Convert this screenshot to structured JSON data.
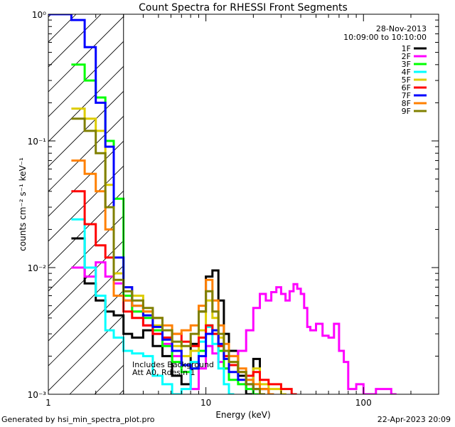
{
  "chart_data": {
    "type": "line",
    "title": "Count Spectra for RHESSI Front Segments",
    "xlabel": "Energy (keV)",
    "ylabel": "counts cm⁻² s⁻¹ keV⁻¹",
    "xscale": "log",
    "yscale": "log",
    "xlim": [
      1,
      300
    ],
    "ylim": [
      0.001,
      1
    ],
    "x_ticks": [
      1,
      10,
      100
    ],
    "x_tick_labels": [
      "1",
      "10",
      "100"
    ],
    "y_ticks": [
      0.001,
      0.01,
      0.1,
      1
    ],
    "y_tick_labels": [
      "10⁻³",
      "10⁻²",
      "10⁻¹",
      "10⁰"
    ],
    "date": "28-Nov-2013",
    "time_range": "10:09:00 to 10:10:00",
    "legend_position": "top-right",
    "excluded_region": [
      1,
      3
    ],
    "annotations": [
      "Includes Background",
      "Att A0, Rdesin 1"
    ],
    "series": [
      {
        "name": "1F",
        "color": "#000000",
        "points": [
          [
            1.4,
            0.017
          ],
          [
            1.7,
            0.0075
          ],
          [
            2.0,
            0.0055
          ],
          [
            2.3,
            0.0045
          ],
          [
            2.6,
            0.0042
          ],
          [
            3.0,
            0.003
          ],
          [
            3.4,
            0.0028
          ],
          [
            4.0,
            0.0032
          ],
          [
            4.6,
            0.0024
          ],
          [
            5.3,
            0.002
          ],
          [
            6.1,
            0.0014
          ],
          [
            7.0,
            0.0012
          ],
          [
            8.0,
            0.0025
          ],
          [
            9.0,
            0.0045
          ],
          [
            10.0,
            0.0085
          ],
          [
            11.0,
            0.0095
          ],
          [
            12.0,
            0.0055
          ],
          [
            13.0,
            0.003
          ],
          [
            14.0,
            0.0022
          ],
          [
            16.0,
            0.0014
          ],
          [
            18.0,
            0.001
          ],
          [
            20.0,
            0.0019
          ],
          [
            22.0,
            0.0011
          ],
          [
            25.0,
            0.001
          ]
        ]
      },
      {
        "name": "2F",
        "color": "#ff00ff",
        "points": [
          [
            1.4,
            0.01
          ],
          [
            1.7,
            0.0085
          ],
          [
            2.0,
            0.011
          ],
          [
            2.3,
            0.0085
          ],
          [
            2.6,
            0.0075
          ],
          [
            3.0,
            0.0055
          ],
          [
            3.4,
            0.0045
          ],
          [
            4.0,
            0.0035
          ],
          [
            4.6,
            0.003
          ],
          [
            5.3,
            0.0025
          ],
          [
            6.1,
            0.002
          ],
          [
            7.0,
            0.0017
          ],
          [
            8.0,
            0.0011
          ],
          [
            9.0,
            0.0016
          ],
          [
            10.0,
            0.0024
          ],
          [
            11.0,
            0.0021
          ],
          [
            12.0,
            0.0018
          ],
          [
            13.0,
            0.0016
          ],
          [
            14.0,
            0.002
          ],
          [
            16.0,
            0.0022
          ],
          [
            18.0,
            0.0032
          ],
          [
            20.0,
            0.0048
          ],
          [
            22.0,
            0.0062
          ],
          [
            24.0,
            0.0055
          ],
          [
            26.0,
            0.0064
          ],
          [
            28.0,
            0.007
          ],
          [
            30.0,
            0.0062
          ],
          [
            32.0,
            0.0055
          ],
          [
            34.0,
            0.0065
          ],
          [
            36.0,
            0.0074
          ],
          [
            38.0,
            0.0068
          ],
          [
            40.0,
            0.0062
          ],
          [
            42.0,
            0.0048
          ],
          [
            44.0,
            0.0034
          ],
          [
            46.0,
            0.0032
          ],
          [
            50.0,
            0.0036
          ],
          [
            55.0,
            0.0029
          ],
          [
            60.0,
            0.0028
          ],
          [
            65.0,
            0.0036
          ],
          [
            70.0,
            0.0022
          ],
          [
            75.0,
            0.0018
          ],
          [
            80.0,
            0.0011
          ],
          [
            90.0,
            0.0012
          ],
          [
            100.0,
            0.001
          ],
          [
            120.0,
            0.0011
          ],
          [
            150.0,
            0.001
          ]
        ]
      },
      {
        "name": "3F",
        "color": "#00ff00",
        "points": [
          [
            1.4,
            0.4
          ],
          [
            1.7,
            0.3
          ],
          [
            2.0,
            0.22
          ],
          [
            2.3,
            0.1
          ],
          [
            2.6,
            0.035
          ],
          [
            3.0,
            0.006
          ],
          [
            3.4,
            0.0045
          ],
          [
            4.0,
            0.004
          ],
          [
            4.6,
            0.0032
          ],
          [
            5.3,
            0.0024
          ],
          [
            6.1,
            0.0018
          ],
          [
            7.0,
            0.0015
          ],
          [
            8.0,
            0.0016
          ],
          [
            9.0,
            0.0022
          ],
          [
            10.0,
            0.0035
          ],
          [
            11.0,
            0.003
          ],
          [
            12.0,
            0.0022
          ],
          [
            13.0,
            0.0016
          ],
          [
            14.0,
            0.0013
          ],
          [
            16.0,
            0.0012
          ],
          [
            18.0,
            0.0011
          ],
          [
            20.0,
            0.001
          ]
        ]
      },
      {
        "name": "4F",
        "color": "#00ffff",
        "points": [
          [
            1.4,
            0.024
          ],
          [
            1.7,
            0.01
          ],
          [
            2.0,
            0.006
          ],
          [
            2.3,
            0.0032
          ],
          [
            2.6,
            0.0028
          ],
          [
            3.0,
            0.0022
          ],
          [
            3.4,
            0.0021
          ],
          [
            4.0,
            0.002
          ],
          [
            4.6,
            0.0014
          ],
          [
            5.3,
            0.0012
          ],
          [
            6.1,
            0.001
          ],
          [
            7.0,
            0.0011
          ],
          [
            8.0,
            0.0018
          ],
          [
            9.0,
            0.0026
          ],
          [
            10.0,
            0.0034
          ],
          [
            11.0,
            0.0025
          ],
          [
            12.0,
            0.0016
          ],
          [
            13.0,
            0.0012
          ],
          [
            14.0,
            0.001
          ]
        ]
      },
      {
        "name": "5F",
        "color": "#ddcc00",
        "points": [
          [
            1.4,
            0.18
          ],
          [
            1.7,
            0.15
          ],
          [
            2.0,
            0.12
          ],
          [
            2.3,
            0.045
          ],
          [
            2.6,
            0.009
          ],
          [
            3.0,
            0.007
          ],
          [
            3.4,
            0.006
          ],
          [
            4.0,
            0.0045
          ],
          [
            4.6,
            0.0035
          ],
          [
            5.3,
            0.0028
          ],
          [
            6.1,
            0.0024
          ],
          [
            7.0,
            0.002
          ],
          [
            8.0,
            0.0022
          ],
          [
            9.0,
            0.0032
          ],
          [
            10.0,
            0.0055
          ],
          [
            11.0,
            0.004
          ],
          [
            12.0,
            0.0028
          ],
          [
            13.0,
            0.002
          ],
          [
            14.0,
            0.0018
          ],
          [
            16.0,
            0.0015
          ],
          [
            18.0,
            0.0013
          ],
          [
            20.0,
            0.0016
          ],
          [
            22.0,
            0.0012
          ],
          [
            25.0,
            0.0011
          ],
          [
            30.0,
            0.001
          ]
        ]
      },
      {
        "name": "6F",
        "color": "#ff0000",
        "points": [
          [
            1.4,
            0.04
          ],
          [
            1.7,
            0.022
          ],
          [
            2.0,
            0.015
          ],
          [
            2.3,
            0.012
          ],
          [
            2.6,
            0.006
          ],
          [
            3.0,
            0.0045
          ],
          [
            3.4,
            0.004
          ],
          [
            4.0,
            0.0035
          ],
          [
            4.6,
            0.003
          ],
          [
            5.3,
            0.0028
          ],
          [
            6.1,
            0.003
          ],
          [
            7.0,
            0.0026
          ],
          [
            8.0,
            0.0024
          ],
          [
            9.0,
            0.0028
          ],
          [
            10.0,
            0.0035
          ],
          [
            11.0,
            0.003
          ],
          [
            12.0,
            0.0024
          ],
          [
            13.0,
            0.002
          ],
          [
            14.0,
            0.0017
          ],
          [
            16.0,
            0.0015
          ],
          [
            18.0,
            0.0014
          ],
          [
            20.0,
            0.0015
          ],
          [
            22.0,
            0.0013
          ],
          [
            25.0,
            0.0012
          ],
          [
            30.0,
            0.0011
          ],
          [
            35.0,
            0.001
          ]
        ]
      },
      {
        "name": "7F",
        "color": "#0000ff",
        "points": [
          [
            1.0,
            1.0
          ],
          [
            1.4,
            0.9
          ],
          [
            1.7,
            0.55
          ],
          [
            2.0,
            0.2
          ],
          [
            2.3,
            0.09
          ],
          [
            2.6,
            0.012
          ],
          [
            3.0,
            0.007
          ],
          [
            3.4,
            0.005
          ],
          [
            4.0,
            0.0042
          ],
          [
            4.6,
            0.0034
          ],
          [
            5.3,
            0.0027
          ],
          [
            6.1,
            0.0022
          ],
          [
            7.0,
            0.0017
          ],
          [
            8.0,
            0.0016
          ],
          [
            9.0,
            0.002
          ],
          [
            10.0,
            0.003
          ],
          [
            11.0,
            0.0032
          ],
          [
            12.0,
            0.0025
          ],
          [
            13.0,
            0.0019
          ],
          [
            14.0,
            0.0015
          ],
          [
            16.0,
            0.0013
          ],
          [
            18.0,
            0.0012
          ],
          [
            20.0,
            0.0011
          ],
          [
            22.0,
            0.001
          ]
        ]
      },
      {
        "name": "8F",
        "color": "#ff8000",
        "points": [
          [
            1.4,
            0.07
          ],
          [
            1.7,
            0.055
          ],
          [
            2.0,
            0.04
          ],
          [
            2.3,
            0.02
          ],
          [
            2.6,
            0.006
          ],
          [
            3.0,
            0.0055
          ],
          [
            3.4,
            0.005
          ],
          [
            4.0,
            0.0045
          ],
          [
            4.6,
            0.004
          ],
          [
            5.3,
            0.0035
          ],
          [
            6.1,
            0.003
          ],
          [
            7.0,
            0.0032
          ],
          [
            8.0,
            0.0035
          ],
          [
            9.0,
            0.005
          ],
          [
            10.0,
            0.008
          ],
          [
            11.0,
            0.0055
          ],
          [
            12.0,
            0.0035
          ],
          [
            13.0,
            0.0025
          ],
          [
            14.0,
            0.002
          ],
          [
            16.0,
            0.0016
          ],
          [
            18.0,
            0.0013
          ],
          [
            20.0,
            0.0012
          ],
          [
            22.0,
            0.0011
          ],
          [
            25.0,
            0.001
          ]
        ]
      },
      {
        "name": "9F",
        "color": "#808000",
        "points": [
          [
            1.4,
            0.15
          ],
          [
            1.7,
            0.12
          ],
          [
            2.0,
            0.08
          ],
          [
            2.3,
            0.03
          ],
          [
            2.6,
            0.008
          ],
          [
            3.0,
            0.0065
          ],
          [
            3.4,
            0.0055
          ],
          [
            4.0,
            0.0048
          ],
          [
            4.6,
            0.004
          ],
          [
            5.3,
            0.0032
          ],
          [
            6.1,
            0.0026
          ],
          [
            7.0,
            0.0024
          ],
          [
            8.0,
            0.003
          ],
          [
            9.0,
            0.0045
          ],
          [
            10.0,
            0.0065
          ],
          [
            11.0,
            0.0045
          ],
          [
            12.0,
            0.003
          ],
          [
            13.0,
            0.0022
          ],
          [
            14.0,
            0.0018
          ],
          [
            16.0,
            0.0015
          ],
          [
            18.0,
            0.0012
          ],
          [
            20.0,
            0.0011
          ],
          [
            22.0,
            0.001
          ]
        ]
      }
    ]
  },
  "footer": {
    "left": "Generated by hsi_min_spectra_plot.pro",
    "right": "22-Apr-2023 20:09"
  }
}
